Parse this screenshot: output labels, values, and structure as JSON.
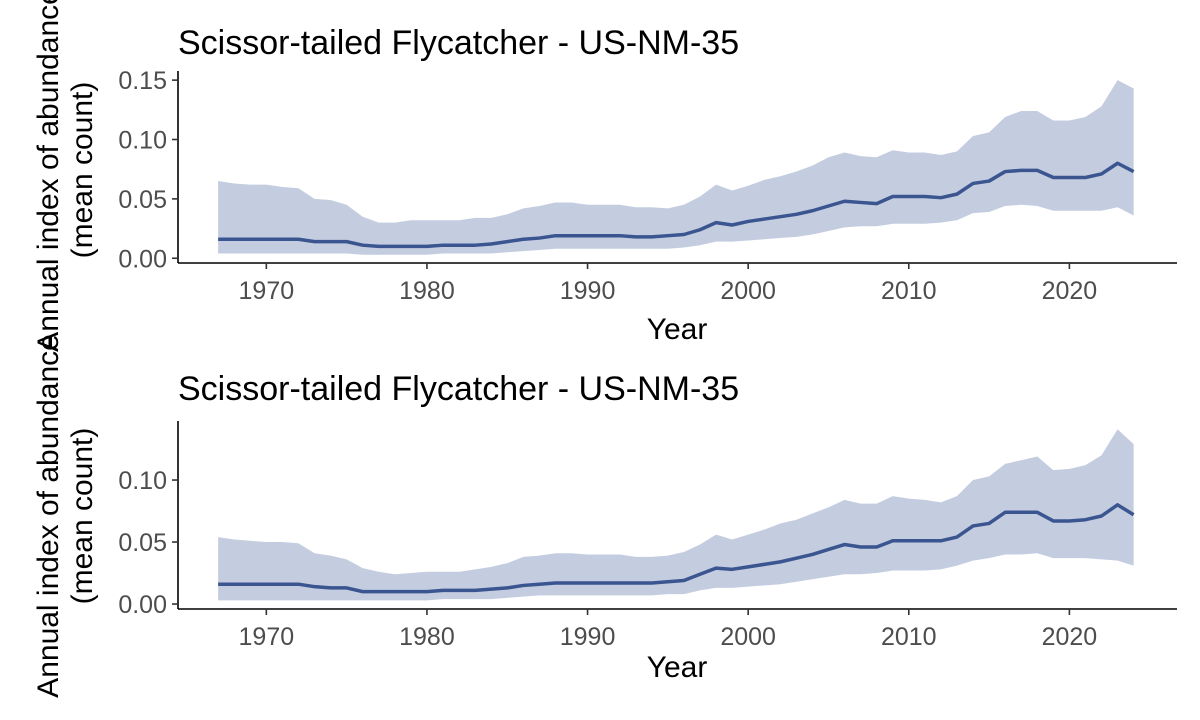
{
  "chart_data": [
    {
      "type": "area",
      "title": "Scissor-tailed Flycatcher - US-NM-35",
      "xlabel": "Year",
      "ylabel_lines": [
        "Annual index of abundance",
        "(mean count)"
      ],
      "xlim": [
        1964.5,
        2026.7
      ],
      "ylim": [
        -0.004,
        0.156
      ],
      "xticks": [
        1970,
        1980,
        1990,
        2000,
        2010,
        2020
      ],
      "xtick_labels": [
        "1970",
        "1980",
        "1990",
        "2000",
        "2010",
        "2020"
      ],
      "yticks": [
        0.0,
        0.05,
        0.1,
        0.15
      ],
      "ytick_labels": [
        "0.00",
        "0.05",
        "0.10",
        "0.15"
      ],
      "grid": false,
      "colors": {
        "line": "#3a5590",
        "band": "#c4cde0"
      },
      "x": [
        1967,
        1968,
        1969,
        1970,
        1971,
        1972,
        1973,
        1974,
        1975,
        1976,
        1977,
        1978,
        1979,
        1980,
        1981,
        1982,
        1983,
        1984,
        1985,
        1986,
        1987,
        1988,
        1989,
        1990,
        1991,
        1992,
        1993,
        1994,
        1995,
        1996,
        1997,
        1998,
        1999,
        2000,
        2001,
        2002,
        2003,
        2004,
        2005,
        2006,
        2007,
        2008,
        2009,
        2010,
        2011,
        2012,
        2013,
        2014,
        2015,
        2016,
        2017,
        2018,
        2019,
        2020,
        2021,
        2022,
        2023,
        2024
      ],
      "series": [
        {
          "name": "index",
          "values": [
            0.016,
            0.016,
            0.016,
            0.016,
            0.016,
            0.016,
            0.014,
            0.014,
            0.014,
            0.011,
            0.01,
            0.01,
            0.01,
            0.01,
            0.011,
            0.011,
            0.011,
            0.012,
            0.014,
            0.016,
            0.017,
            0.019,
            0.019,
            0.019,
            0.019,
            0.019,
            0.018,
            0.018,
            0.019,
            0.02,
            0.024,
            0.03,
            0.028,
            0.031,
            0.033,
            0.035,
            0.037,
            0.04,
            0.044,
            0.048,
            0.047,
            0.046,
            0.052,
            0.052,
            0.052,
            0.051,
            0.054,
            0.063,
            0.065,
            0.073,
            0.074,
            0.074,
            0.068,
            0.068,
            0.068,
            0.071,
            0.08,
            0.073
          ]
        },
        {
          "name": "upper",
          "values": [
            0.065,
            0.063,
            0.062,
            0.062,
            0.06,
            0.059,
            0.05,
            0.049,
            0.045,
            0.035,
            0.03,
            0.03,
            0.032,
            0.032,
            0.032,
            0.032,
            0.034,
            0.034,
            0.037,
            0.042,
            0.044,
            0.047,
            0.047,
            0.045,
            0.045,
            0.045,
            0.043,
            0.043,
            0.042,
            0.045,
            0.052,
            0.062,
            0.057,
            0.061,
            0.066,
            0.069,
            0.073,
            0.078,
            0.085,
            0.089,
            0.086,
            0.085,
            0.091,
            0.089,
            0.089,
            0.087,
            0.09,
            0.103,
            0.106,
            0.119,
            0.124,
            0.124,
            0.116,
            0.116,
            0.119,
            0.128,
            0.15,
            0.143
          ]
        },
        {
          "name": "lower",
          "values": [
            0.004,
            0.004,
            0.004,
            0.004,
            0.004,
            0.004,
            0.004,
            0.004,
            0.004,
            0.003,
            0.003,
            0.003,
            0.003,
            0.003,
            0.004,
            0.004,
            0.004,
            0.004,
            0.005,
            0.006,
            0.007,
            0.008,
            0.008,
            0.008,
            0.008,
            0.008,
            0.008,
            0.008,
            0.008,
            0.009,
            0.011,
            0.014,
            0.014,
            0.015,
            0.016,
            0.017,
            0.018,
            0.02,
            0.023,
            0.026,
            0.027,
            0.027,
            0.029,
            0.029,
            0.029,
            0.03,
            0.032,
            0.038,
            0.039,
            0.044,
            0.045,
            0.044,
            0.04,
            0.04,
            0.04,
            0.04,
            0.043,
            0.036
          ]
        }
      ]
    },
    {
      "type": "area",
      "title": "Scissor-tailed Flycatcher - US-NM-35",
      "xlabel": "Year",
      "ylabel_lines": [
        "Annual index of abundance",
        "(mean count)"
      ],
      "xlim": [
        1964.5,
        2026.7
      ],
      "ylim": [
        -0.004,
        0.146
      ],
      "xticks": [
        1970,
        1980,
        1990,
        2000,
        2010,
        2020
      ],
      "xtick_labels": [
        "1970",
        "1980",
        "1990",
        "2000",
        "2010",
        "2020"
      ],
      "yticks": [
        0.0,
        0.05,
        0.1
      ],
      "ytick_labels": [
        "0.00",
        "0.05",
        "0.10"
      ],
      "grid": false,
      "colors": {
        "line": "#3a5590",
        "band": "#c4cde0"
      },
      "x": [
        1967,
        1968,
        1969,
        1970,
        1971,
        1972,
        1973,
        1974,
        1975,
        1976,
        1977,
        1978,
        1979,
        1980,
        1981,
        1982,
        1983,
        1984,
        1985,
        1986,
        1987,
        1988,
        1989,
        1990,
        1991,
        1992,
        1993,
        1994,
        1995,
        1996,
        1997,
        1998,
        1999,
        2000,
        2001,
        2002,
        2003,
        2004,
        2005,
        2006,
        2007,
        2008,
        2009,
        2010,
        2011,
        2012,
        2013,
        2014,
        2015,
        2016,
        2017,
        2018,
        2019,
        2020,
        2021,
        2022,
        2023,
        2024
      ],
      "series": [
        {
          "name": "index",
          "values": [
            0.016,
            0.016,
            0.016,
            0.016,
            0.016,
            0.016,
            0.014,
            0.013,
            0.013,
            0.01,
            0.01,
            0.01,
            0.01,
            0.01,
            0.011,
            0.011,
            0.011,
            0.012,
            0.013,
            0.015,
            0.016,
            0.017,
            0.017,
            0.017,
            0.017,
            0.017,
            0.017,
            0.017,
            0.018,
            0.019,
            0.024,
            0.029,
            0.028,
            0.03,
            0.032,
            0.034,
            0.037,
            0.04,
            0.044,
            0.048,
            0.046,
            0.046,
            0.051,
            0.051,
            0.051,
            0.051,
            0.054,
            0.063,
            0.065,
            0.074,
            0.074,
            0.074,
            0.067,
            0.067,
            0.068,
            0.071,
            0.08,
            0.072
          ]
        },
        {
          "name": "upper",
          "values": [
            0.054,
            0.052,
            0.051,
            0.05,
            0.05,
            0.049,
            0.041,
            0.039,
            0.036,
            0.029,
            0.026,
            0.024,
            0.025,
            0.026,
            0.026,
            0.026,
            0.028,
            0.03,
            0.033,
            0.038,
            0.039,
            0.041,
            0.041,
            0.04,
            0.04,
            0.04,
            0.038,
            0.038,
            0.039,
            0.042,
            0.048,
            0.056,
            0.052,
            0.056,
            0.06,
            0.065,
            0.068,
            0.073,
            0.078,
            0.084,
            0.081,
            0.081,
            0.087,
            0.085,
            0.084,
            0.082,
            0.087,
            0.1,
            0.103,
            0.113,
            0.116,
            0.119,
            0.108,
            0.109,
            0.112,
            0.12,
            0.141,
            0.129
          ]
        },
        {
          "name": "lower",
          "values": [
            0.003,
            0.003,
            0.003,
            0.003,
            0.003,
            0.003,
            0.003,
            0.003,
            0.003,
            0.003,
            0.003,
            0.003,
            0.003,
            0.003,
            0.004,
            0.004,
            0.004,
            0.004,
            0.005,
            0.006,
            0.007,
            0.007,
            0.007,
            0.007,
            0.007,
            0.007,
            0.007,
            0.007,
            0.008,
            0.008,
            0.011,
            0.013,
            0.013,
            0.014,
            0.015,
            0.016,
            0.018,
            0.02,
            0.022,
            0.024,
            0.024,
            0.025,
            0.027,
            0.027,
            0.027,
            0.028,
            0.031,
            0.035,
            0.037,
            0.04,
            0.04,
            0.041,
            0.037,
            0.037,
            0.037,
            0.036,
            0.035,
            0.031
          ]
        }
      ]
    }
  ]
}
